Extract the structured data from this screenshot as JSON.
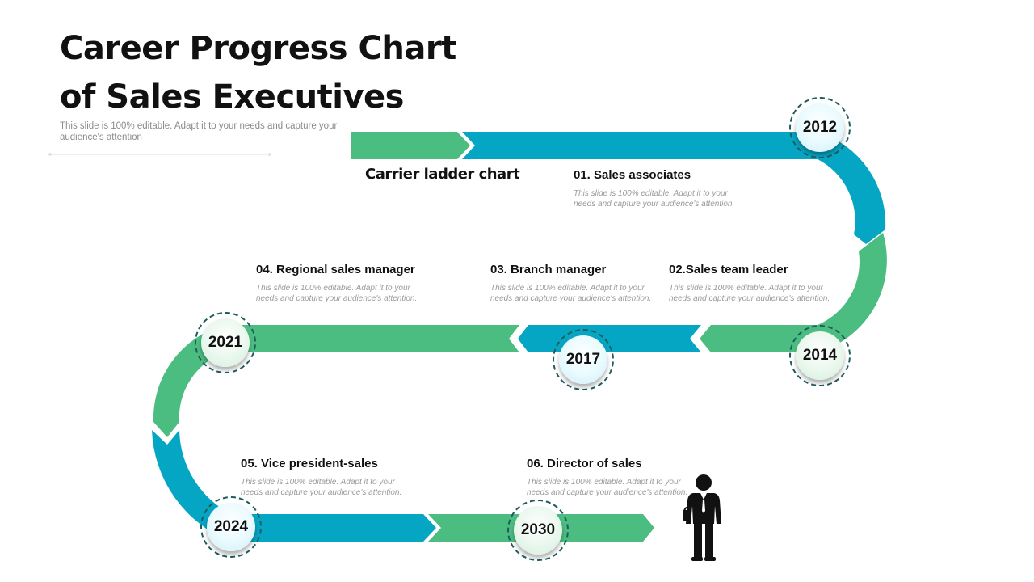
{
  "title": {
    "line1": "Career Progress Chart",
    "line2": "of Sales Executives",
    "subtitle": "This slide is 100% editable. Adapt it to your needs and capture your audience's attention"
  },
  "ladder_label": "Carrier ladder chart",
  "colors": {
    "blue": "#05a5c4",
    "green": "#4cbd81",
    "ring": "#1f5c5e"
  },
  "steps": [
    {
      "title": "01. Sales associates",
      "desc": "This slide is 100% editable. Adapt it to your needs and capture your audience's attention."
    },
    {
      "title": "02.Sales team leader",
      "desc": "This slide is 100% editable. Adapt it to your needs and capture your audience's attention."
    },
    {
      "title": "03. Branch manager",
      "desc": "This slide is 100% editable. Adapt it to your needs and capture your audience's attention."
    },
    {
      "title": "04. Regional sales manager",
      "desc": "This slide is 100% editable. Adapt it to your needs and capture your audience's attention."
    },
    {
      "title": "05. Vice president-sales",
      "desc": "This slide is 100% editable. Adapt it to your needs and capture your audience's attention."
    },
    {
      "title": "06. Director of sales",
      "desc": "This slide is 100% editable. Adapt it to your needs and capture your audience's attention."
    }
  ],
  "years": [
    "2012",
    "2014",
    "2017",
    "2021",
    "2024",
    "2030"
  ],
  "icons": {
    "person": "businessman-icon"
  }
}
